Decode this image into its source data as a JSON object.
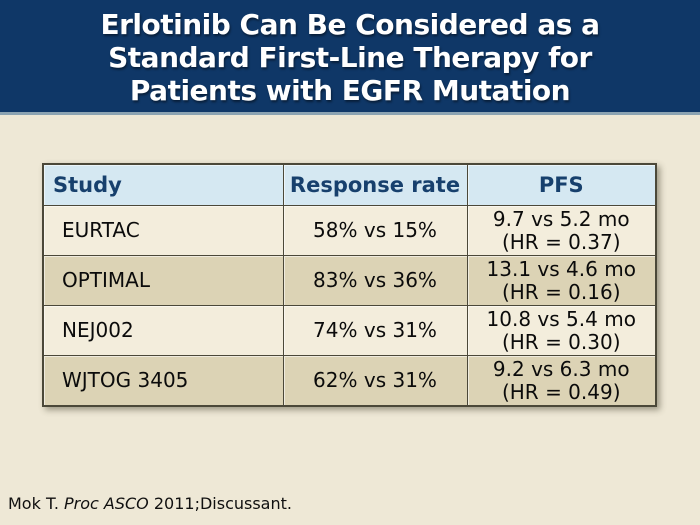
{
  "slide": {
    "title_line1": "Erlotinib Can Be Considered as a",
    "title_line2": "Standard First-Line Therapy for",
    "title_line3": "Patients with EGFR Mutation",
    "footer": {
      "prefix": "Mok T. ",
      "italic": "Proc ASCO",
      "suffix": " 2011;Discussant."
    }
  },
  "colors": {
    "title_band_bg": "#0F3767",
    "title_band_separator": "#8BA3B2",
    "title_text": "#FFFFFF",
    "body_bg": "#EEE8D6",
    "table_header_bg": "#D5E8F2",
    "table_header_text": "#17406D",
    "table_row_light_bg": "#F3EDDC",
    "table_row_dark_bg": "#DCD3B5",
    "table_border": "#4B4839",
    "cell_text": "#0B0B0B"
  },
  "table": {
    "headers": {
      "study": "Study",
      "response_rate": "Response rate",
      "pfs": "PFS"
    },
    "rows": [
      {
        "study": "EURTAC",
        "response_rate": "58% vs 15%",
        "pfs_line1": "9.7 vs 5.2 mo",
        "pfs_line2": "(HR = 0.37)"
      },
      {
        "study": "OPTIMAL",
        "response_rate": "83% vs 36%",
        "pfs_line1": "13.1 vs 4.6 mo",
        "pfs_line2": "(HR = 0.16)"
      },
      {
        "study": "NEJ002",
        "response_rate": "74% vs 31%",
        "pfs_line1": "10.8 vs 5.4 mo",
        "pfs_line2": "(HR = 0.30)"
      },
      {
        "study": "WJTOG 3405",
        "response_rate": "62% vs 31%",
        "pfs_line1": "9.2 vs 6.3 mo",
        "pfs_line2": "(HR = 0.49)"
      }
    ]
  }
}
